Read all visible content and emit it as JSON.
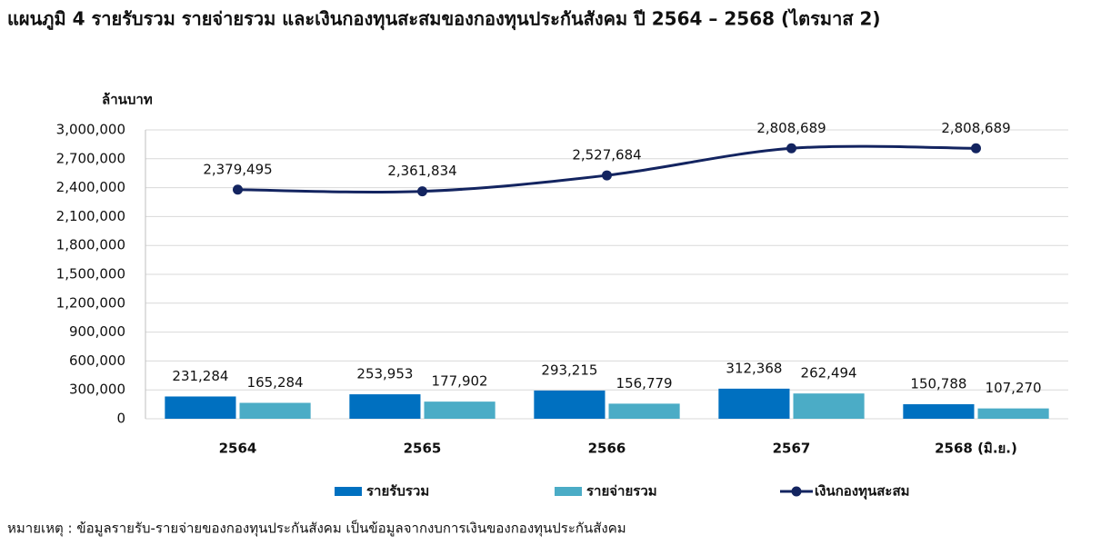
{
  "chart_data": {
    "type": "combo",
    "title": "แผนภูมิ 4 รายรับรวม รายจ่ายรวม และเงินกองทุนสะสมของกองทุนประกันสังคม ปี 2564 – 2568 (ไตรมาส 2)",
    "ylabel": "ล้านบาท",
    "footnote": "หมายเหตุ : ข้อมูลรายรับ-รายจ่ายของกองทุนประกันสังคม เป็นข้อมูลจากงบการเงินของกองทุนประกันสังคม",
    "categories": [
      "2564",
      "2565",
      "2566",
      "2567",
      "2568 (มิ.ย.)"
    ],
    "series": [
      {
        "name": "รายรับรวม",
        "type": "bar",
        "color": "#0070c0",
        "values": [
          231284,
          253953,
          293215,
          312368,
          150788
        ],
        "value_labels": [
          "231,284",
          "253,953",
          "293,215",
          "312,368",
          "150,788"
        ]
      },
      {
        "name": "รายจ่ายรวม",
        "type": "bar",
        "color": "#4bacc6",
        "values": [
          165284,
          177902,
          156779,
          262494,
          107270
        ],
        "value_labels": [
          "165,284",
          "177,902",
          "156,779",
          "262,494",
          "107,270"
        ]
      },
      {
        "name": "เงินกองทุนสะสม",
        "type": "line",
        "color": "#132460",
        "values": [
          2379495,
          2361834,
          2527684,
          2808689,
          2808689
        ],
        "value_labels": [
          "2,379,495",
          "2,361,834",
          "2,527,684",
          "2,808,689",
          "2,808,689"
        ]
      }
    ],
    "ylim": [
      0,
      3000000
    ],
    "yticks": [
      0,
      {
        "value": 300000,
        "label": "300,000"
      },
      {
        "value": 600000,
        "label": "600,000"
      },
      {
        "value": 900000,
        "label": "900,000"
      },
      {
        "value": 1200000,
        "label": "1,200,000"
      },
      {
        "value": 1500000,
        "label": "1,500,000"
      },
      {
        "value": 1800000,
        "label": "1,800,000"
      },
      {
        "value": 2100000,
        "label": "2,100,000"
      },
      {
        "value": 2400000,
        "label": "2,400,000"
      },
      {
        "value": 2700000,
        "label": "2,700,000"
      },
      {
        "value": 3000000,
        "label": "3,000,000"
      }
    ],
    "grid": true,
    "legend": "bottom"
  }
}
